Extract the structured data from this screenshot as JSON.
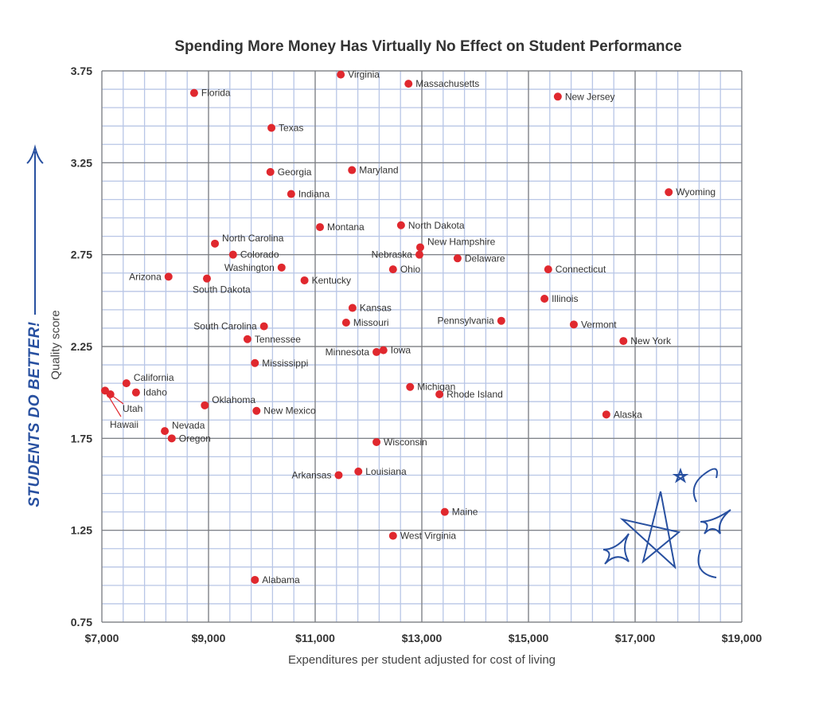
{
  "chart_data": {
    "type": "scatter",
    "title": "Spending More Money Has Virtually No Effect on Student Performance",
    "xlabel": "Expenditures per student adjusted for cost of living",
    "ylabel": "Quality score",
    "annotation": "STUDENTS DO BETTER!",
    "xlim": [
      7000,
      19000
    ],
    "ylim": [
      0.75,
      3.75
    ],
    "xticks": [
      7000,
      9000,
      11000,
      13000,
      15000,
      17000,
      19000
    ],
    "xtick_labels": [
      "$7,000",
      "$9,000",
      "$11,000",
      "$13,000",
      "$15,000",
      "$17,000",
      "$19,000"
    ],
    "yticks": [
      0.75,
      1.25,
      1.75,
      2.25,
      2.75,
      3.25,
      3.75
    ],
    "ytick_labels": [
      "0.75",
      "1.25",
      "1.75",
      "2.25",
      "2.75",
      "3.25",
      "3.75"
    ],
    "grid": true,
    "colors": {
      "point": "#e0282e",
      "grid_minor": "#b8c6e6",
      "grid_major": "#7a7a7a",
      "annotation": "#2850a0"
    },
    "points": [
      {
        "label": "Virginia",
        "x": 11480,
        "y": 3.73
      },
      {
        "label": "Massachusetts",
        "x": 12750,
        "y": 3.68
      },
      {
        "label": "Florida",
        "x": 8730,
        "y": 3.63
      },
      {
        "label": "New Jersey",
        "x": 15550,
        "y": 3.61
      },
      {
        "label": "Texas",
        "x": 10180,
        "y": 3.44
      },
      {
        "label": "Georgia",
        "x": 10160,
        "y": 3.2
      },
      {
        "label": "Maryland",
        "x": 11690,
        "y": 3.21
      },
      {
        "label": "Indiana",
        "x": 10550,
        "y": 3.08
      },
      {
        "label": "Wyoming",
        "x": 17630,
        "y": 3.09
      },
      {
        "label": "Montana",
        "x": 11090,
        "y": 2.9
      },
      {
        "label": "North Dakota",
        "x": 12610,
        "y": 2.91
      },
      {
        "label": "North Carolina",
        "x": 9120,
        "y": 2.81
      },
      {
        "label": "Colorado",
        "x": 9460,
        "y": 2.75
      },
      {
        "label": "New Hampshire",
        "x": 12970,
        "y": 2.79
      },
      {
        "label": "Nebraska",
        "x": 12955,
        "y": 2.75
      },
      {
        "label": "Delaware",
        "x": 13670,
        "y": 2.73
      },
      {
        "label": "Washington",
        "x": 10370,
        "y": 2.68
      },
      {
        "label": "Ohio",
        "x": 12460,
        "y": 2.67
      },
      {
        "label": "Connecticut",
        "x": 15370,
        "y": 2.67
      },
      {
        "label": "Arizona",
        "x": 8250,
        "y": 2.63
      },
      {
        "label": "South Dakota",
        "x": 8970,
        "y": 2.62
      },
      {
        "label": "Kentucky",
        "x": 10800,
        "y": 2.61
      },
      {
        "label": "Illinois",
        "x": 15300,
        "y": 2.51
      },
      {
        "label": "Kansas",
        "x": 11700,
        "y": 2.46
      },
      {
        "label": "Pennsylvania",
        "x": 14490,
        "y": 2.39
      },
      {
        "label": "Missouri",
        "x": 11580,
        "y": 2.38
      },
      {
        "label": "Vermont",
        "x": 15850,
        "y": 2.37
      },
      {
        "label": "South Carolina",
        "x": 10040,
        "y": 2.36
      },
      {
        "label": "Tennessee",
        "x": 9730,
        "y": 2.29
      },
      {
        "label": "New York",
        "x": 16780,
        "y": 2.28
      },
      {
        "label": "Minnesota",
        "x": 12150,
        "y": 2.22
      },
      {
        "label": "Iowa",
        "x": 12280,
        "y": 2.23
      },
      {
        "label": "Mississippi",
        "x": 9870,
        "y": 2.16
      },
      {
        "label": "California",
        "x": 7460,
        "y": 2.05
      },
      {
        "label": "Michigan",
        "x": 12780,
        "y": 2.03
      },
      {
        "label": "Idaho",
        "x": 7640,
        "y": 2.0
      },
      {
        "label": "Hawaii",
        "x": 7060,
        "y": 2.01
      },
      {
        "label": "Utah",
        "x": 7160,
        "y": 1.99
      },
      {
        "label": "Rhode Island",
        "x": 13330,
        "y": 1.99
      },
      {
        "label": "Oklahoma",
        "x": 8930,
        "y": 1.93
      },
      {
        "label": "New Mexico",
        "x": 9900,
        "y": 1.9
      },
      {
        "label": "Alaska",
        "x": 16460,
        "y": 1.88
      },
      {
        "label": "Nevada",
        "x": 8180,
        "y": 1.79
      },
      {
        "label": "Oregon",
        "x": 8310,
        "y": 1.75
      },
      {
        "label": "Wisconsin",
        "x": 12150,
        "y": 1.73
      },
      {
        "label": "Louisiana",
        "x": 11810,
        "y": 1.57
      },
      {
        "label": "Arkansas",
        "x": 11440,
        "y": 1.55
      },
      {
        "label": "Maine",
        "x": 13430,
        "y": 1.35
      },
      {
        "label": "West Virginia",
        "x": 12460,
        "y": 1.22
      },
      {
        "label": "Alabama",
        "x": 9870,
        "y": 0.98
      }
    ]
  }
}
